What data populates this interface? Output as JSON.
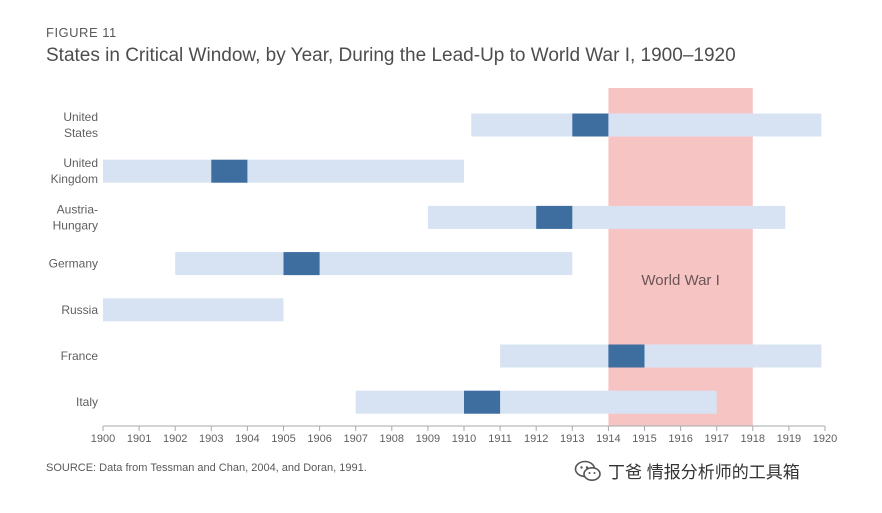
{
  "figure_label": "FIGURE 11",
  "title": "States in Critical Window, by Year, During the Lead-Up to World War I, 1900–1920",
  "source": "SOURCE: Data from Tessman and Chan, 2004, and Doran, 1991.",
  "watermark": {
    "text": "丁爸 情报分析师的工具箱",
    "icon": "wechat-icon"
  },
  "colors": {
    "window": "#d7e3f3",
    "critical": "#3e6ea0",
    "war": "#f7c4c4",
    "axis": "#a7a9ac"
  },
  "chart_data": {
    "type": "timeline",
    "title": "States in Critical Window, by Year, During the Lead-Up to World War I, 1900–1920",
    "xlim": [
      1900,
      1920
    ],
    "ticks": [
      "1900",
      "1901",
      "1902",
      "1903",
      "1904",
      "1905",
      "1906",
      "1907",
      "1908",
      "1909",
      "1910",
      "1911",
      "1912",
      "1913",
      "1914",
      "1915",
      "1916",
      "1917",
      "1918",
      "1919",
      "1920"
    ],
    "war_period": {
      "label": "World War I",
      "start": 1914,
      "end": 1918
    },
    "states": [
      {
        "name": "United States",
        "lines": [
          "United",
          "States"
        ],
        "window": [
          1910.2,
          1919.9
        ],
        "critical": [
          1913,
          1914
        ]
      },
      {
        "name": "United Kingdom",
        "lines": [
          "United",
          "Kingdom"
        ],
        "window": [
          1900,
          1910
        ],
        "critical": [
          1903,
          1904
        ]
      },
      {
        "name": "Austria-Hungary",
        "lines": [
          "Austria-",
          "Hungary"
        ],
        "window": [
          1909,
          1918.9
        ],
        "critical": [
          1912,
          1913
        ]
      },
      {
        "name": "Germany",
        "lines": [
          "Germany"
        ],
        "window": [
          1902,
          1913
        ],
        "critical": [
          1905,
          1906
        ]
      },
      {
        "name": "Russia",
        "lines": [
          "Russia"
        ],
        "window": [
          1900,
          1905
        ],
        "critical": null
      },
      {
        "name": "France",
        "lines": [
          "France"
        ],
        "window": [
          1911,
          1919.9
        ],
        "critical": [
          1914,
          1915
        ]
      },
      {
        "name": "Italy",
        "lines": [
          "Italy"
        ],
        "window": [
          1907,
          1917
        ],
        "critical": [
          1910,
          1911
        ]
      }
    ]
  }
}
